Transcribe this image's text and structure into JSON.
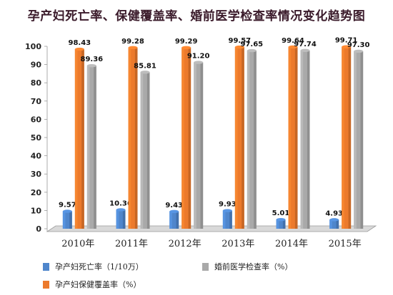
{
  "title": "孕产妇死亡率、保健覆盖率、婚前医学检查率情况变化趋势图",
  "colors": {
    "maternal": "#4f86cc",
    "coverage": "#ec7a2c",
    "premarital": "#a9a9a9"
  },
  "legend": {
    "maternal": "孕产妇死亡率（1/10万）",
    "premarital": "婚前医学检查率（%）",
    "coverage": "孕产妇保健覆盖率（%）"
  },
  "chart_data": {
    "type": "bar",
    "title": "孕产妇死亡率、保健覆盖率、婚前医学检查率情况变化趋势图",
    "categories": [
      "2010年",
      "2011年",
      "2012年",
      "2013年",
      "2014年",
      "2015年"
    ],
    "ylim": [
      0,
      100
    ],
    "yticks": [
      0,
      10,
      20,
      30,
      40,
      50,
      60,
      70,
      80,
      90,
      100
    ],
    "grid": false,
    "legend_position": "bottom",
    "series": [
      {
        "key": "maternal",
        "name": "孕产妇死亡率（1/10万）",
        "values": [
          9.57,
          10.36,
          9.43,
          9.93,
          5.01,
          4.93
        ],
        "labels": [
          "9.57",
          "10.36",
          "9.43",
          "9.93",
          "5.01",
          "4.93"
        ]
      },
      {
        "key": "coverage",
        "name": "孕产妇保健覆盖率（%）",
        "values": [
          98.43,
          99.28,
          99.29,
          99.57,
          99.64,
          99.71
        ],
        "labels": [
          "98.43",
          "99.28",
          "99.29",
          "99.57",
          "99.64",
          "99.71"
        ]
      },
      {
        "key": "premarital",
        "name": "婚前医学检查率（%）",
        "values": [
          89.36,
          85.81,
          91.2,
          97.65,
          97.74,
          97.3
        ],
        "labels": [
          "89.36",
          "85.81",
          "91.20",
          "97.65",
          "97.74",
          "97.30"
        ]
      }
    ]
  }
}
